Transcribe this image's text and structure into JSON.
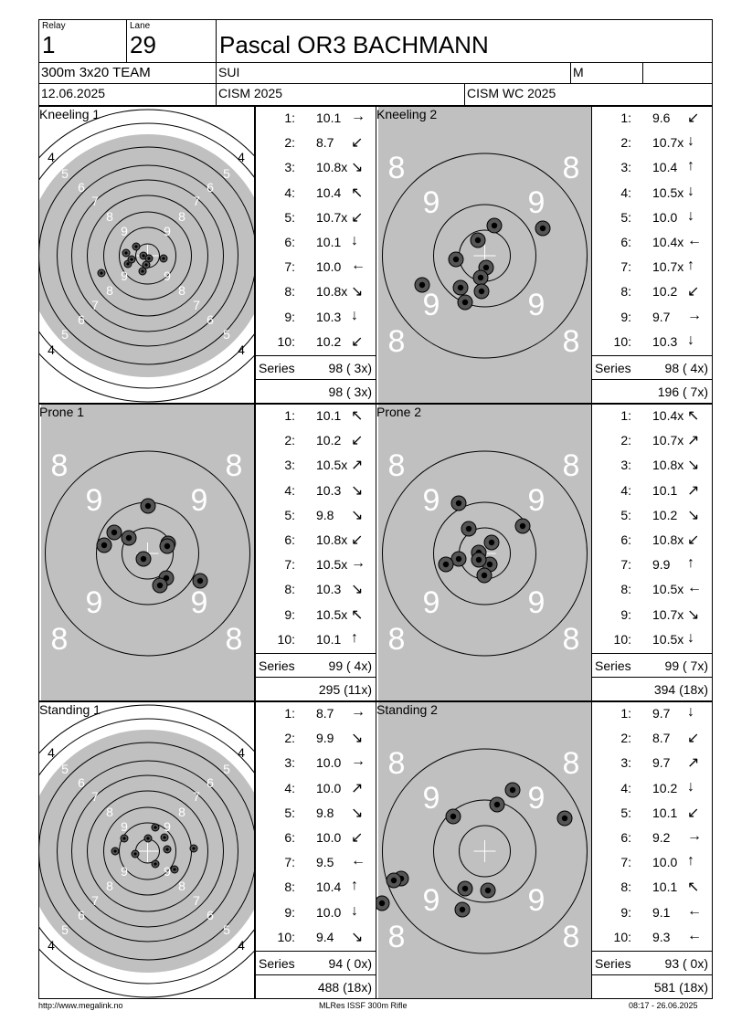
{
  "header": {
    "relay_label": "Relay",
    "relay": "1",
    "lane_label": "Lane",
    "lane": "29",
    "name": "Pascal OR3 BACHMANN",
    "event": "300m 3x20 TEAM",
    "nation": "SUI",
    "gender": "M",
    "date": "12.06.2025",
    "competition": "CISM 2025",
    "match": "CISM WC 2025"
  },
  "series": [
    {
      "title": "Kneeling 1",
      "target": "full",
      "shots": [
        {
          "n": "1:",
          "v": "10.1",
          "d": "→"
        },
        {
          "n": "2:",
          "v": "8.7",
          "d": "↙"
        },
        {
          "n": "3:",
          "v": "10.8x",
          "d": "↘"
        },
        {
          "n": "4:",
          "v": "10.4",
          "d": "↖"
        },
        {
          "n": "5:",
          "v": "10.7x",
          "d": "↙"
        },
        {
          "n": "6:",
          "v": "10.1",
          "d": "↓"
        },
        {
          "n": "7:",
          "v": "10.0",
          "d": "←"
        },
        {
          "n": "8:",
          "v": "10.8x",
          "d": "↘"
        },
        {
          "n": "9:",
          "v": "10.3",
          "d": "↓"
        },
        {
          "n": "10:",
          "v": "10.2",
          "d": "↙"
        }
      ],
      "series_label": "Series",
      "series_score": "98 ( 3x)",
      "running_total": "98 ( 3x)"
    },
    {
      "title": "Kneeling 2",
      "target": "zoom",
      "shots": [
        {
          "n": "1:",
          "v": "9.6",
          "d": "↙"
        },
        {
          "n": "2:",
          "v": "10.7x",
          "d": "↓"
        },
        {
          "n": "3:",
          "v": "10.4",
          "d": "↑"
        },
        {
          "n": "4:",
          "v": "10.5x",
          "d": "↓"
        },
        {
          "n": "5:",
          "v": "10.0",
          "d": "↓"
        },
        {
          "n": "6:",
          "v": "10.4x",
          "d": "←"
        },
        {
          "n": "7:",
          "v": "10.7x",
          "d": "↑"
        },
        {
          "n": "8:",
          "v": "10.2",
          "d": "↙"
        },
        {
          "n": "9:",
          "v": "9.7",
          "d": "→"
        },
        {
          "n": "10:",
          "v": "10.3",
          "d": "↓"
        }
      ],
      "series_label": "Series",
      "series_score": "98 ( 4x)",
      "running_total": "196 ( 7x)"
    },
    {
      "title": "Prone 1",
      "target": "zoom",
      "shots": [
        {
          "n": "1:",
          "v": "10.1",
          "d": "↖"
        },
        {
          "n": "2:",
          "v": "10.2",
          "d": "↙"
        },
        {
          "n": "3:",
          "v": "10.5x",
          "d": "↗"
        },
        {
          "n": "4:",
          "v": "10.3",
          "d": "↘"
        },
        {
          "n": "5:",
          "v": "9.8",
          "d": "↘"
        },
        {
          "n": "6:",
          "v": "10.8x",
          "d": "↙"
        },
        {
          "n": "7:",
          "v": "10.5x",
          "d": "→"
        },
        {
          "n": "8:",
          "v": "10.3",
          "d": "↘"
        },
        {
          "n": "9:",
          "v": "10.5x",
          "d": "↖"
        },
        {
          "n": "10:",
          "v": "10.1",
          "d": "↑"
        }
      ],
      "series_label": "Series",
      "series_score": "99 ( 4x)",
      "running_total": "295 (11x)"
    },
    {
      "title": "Prone 2",
      "target": "zoom",
      "shots": [
        {
          "n": "1:",
          "v": "10.4x",
          "d": "↖"
        },
        {
          "n": "2:",
          "v": "10.7x",
          "d": "↗"
        },
        {
          "n": "3:",
          "v": "10.8x",
          "d": "↘"
        },
        {
          "n": "4:",
          "v": "10.1",
          "d": "↗"
        },
        {
          "n": "5:",
          "v": "10.2",
          "d": "↘"
        },
        {
          "n": "6:",
          "v": "10.8x",
          "d": "↙"
        },
        {
          "n": "7:",
          "v": "9.9",
          "d": "↑"
        },
        {
          "n": "8:",
          "v": "10.5x",
          "d": "←"
        },
        {
          "n": "9:",
          "v": "10.7x",
          "d": "↘"
        },
        {
          "n": "10:",
          "v": "10.5x",
          "d": "↓"
        }
      ],
      "series_label": "Series",
      "series_score": "99 ( 7x)",
      "running_total": "394 (18x)"
    },
    {
      "title": "Standing 1",
      "target": "full",
      "shots": [
        {
          "n": "1:",
          "v": "8.7",
          "d": "→"
        },
        {
          "n": "2:",
          "v": "9.9",
          "d": "↘"
        },
        {
          "n": "3:",
          "v": "10.0",
          "d": "→"
        },
        {
          "n": "4:",
          "v": "10.0",
          "d": "↗"
        },
        {
          "n": "5:",
          "v": "9.8",
          "d": "↘"
        },
        {
          "n": "6:",
          "v": "10.0",
          "d": "↙"
        },
        {
          "n": "7:",
          "v": "9.5",
          "d": "←"
        },
        {
          "n": "8:",
          "v": "10.4",
          "d": "↑"
        },
        {
          "n": "9:",
          "v": "10.0",
          "d": "↓"
        },
        {
          "n": "10:",
          "v": "9.4",
          "d": "↘"
        }
      ],
      "series_label": "Series",
      "series_score": "94 ( 0x)",
      "running_total": "488 (18x)"
    },
    {
      "title": "Standing 2",
      "target": "zoom",
      "shots": [
        {
          "n": "1:",
          "v": "9.7",
          "d": "↓"
        },
        {
          "n": "2:",
          "v": "8.7",
          "d": "↙"
        },
        {
          "n": "3:",
          "v": "9.7",
          "d": "↗"
        },
        {
          "n": "4:",
          "v": "10.2",
          "d": "↓"
        },
        {
          "n": "5:",
          "v": "10.1",
          "d": "↙"
        },
        {
          "n": "6:",
          "v": "9.2",
          "d": "→"
        },
        {
          "n": "7:",
          "v": "10.0",
          "d": "↑"
        },
        {
          "n": "8:",
          "v": "10.1",
          "d": "↖"
        },
        {
          "n": "9:",
          "v": "9.1",
          "d": "←"
        },
        {
          "n": "10:",
          "v": "9.3",
          "d": "←"
        }
      ],
      "series_label": "Series",
      "series_score": "93 ( 0x)",
      "running_total": "581 (18x)"
    }
  ],
  "target_labels": {
    "full": [
      "4",
      "5",
      "6",
      "7",
      "8",
      "9"
    ],
    "zoom": [
      "8",
      "9"
    ]
  },
  "footer": {
    "left": "http://www.megalink.no",
    "center": "MLRes ISSF 300m Rifle",
    "right": "08:17 - 26.06.2025"
  },
  "colors": {
    "target_gray": "#c0c0c0",
    "ring_line": "#000000",
    "shot_fill": "#555555"
  }
}
